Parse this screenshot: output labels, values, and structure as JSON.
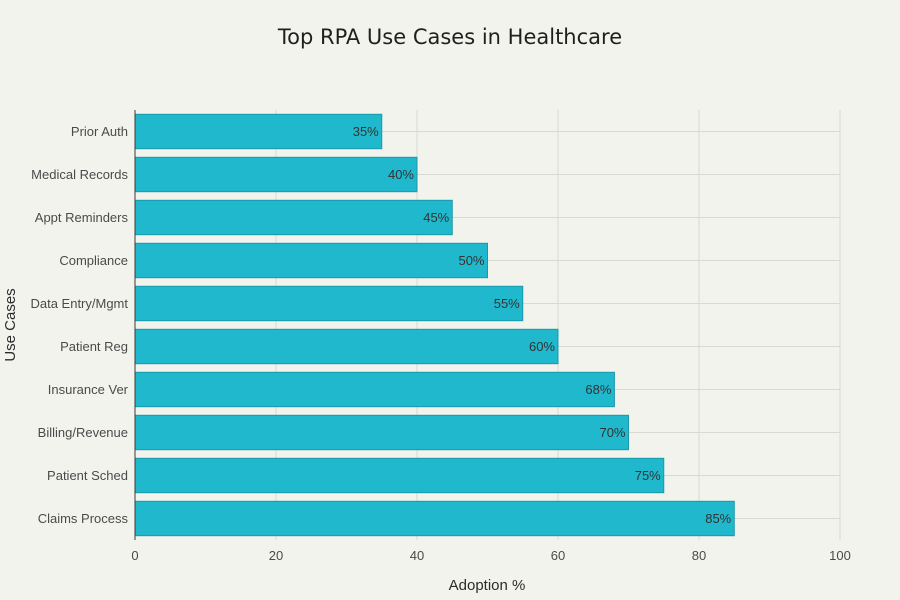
{
  "chart_data": {
    "type": "bar",
    "orientation": "horizontal",
    "title": "Top RPA Use Cases in Healthcare",
    "xlabel": "Adoption %",
    "ylabel": "Use Cases",
    "categories": [
      "Claims Process",
      "Patient Sched",
      "Billing/Revenue",
      "Insurance Ver",
      "Patient Reg",
      "Data Entry/Mgmt",
      "Compliance",
      "Appt Reminders",
      "Medical Records",
      "Prior Auth"
    ],
    "values": [
      85,
      75,
      70,
      68,
      60,
      55,
      50,
      45,
      40,
      35
    ],
    "value_labels": [
      "85%",
      "75%",
      "70%",
      "68%",
      "60%",
      "55%",
      "50%",
      "45%",
      "40%",
      "35%"
    ],
    "xlim": [
      0,
      100
    ],
    "xticks": [
      0,
      20,
      40,
      60,
      80,
      100
    ],
    "xtick_labels": [
      "0",
      "20",
      "40",
      "60",
      "80",
      "100"
    ],
    "grid": true,
    "colors": {
      "bar": "#20b8cc",
      "bar_edge": "#1a98aa",
      "background": "#f3f3ee"
    }
  }
}
